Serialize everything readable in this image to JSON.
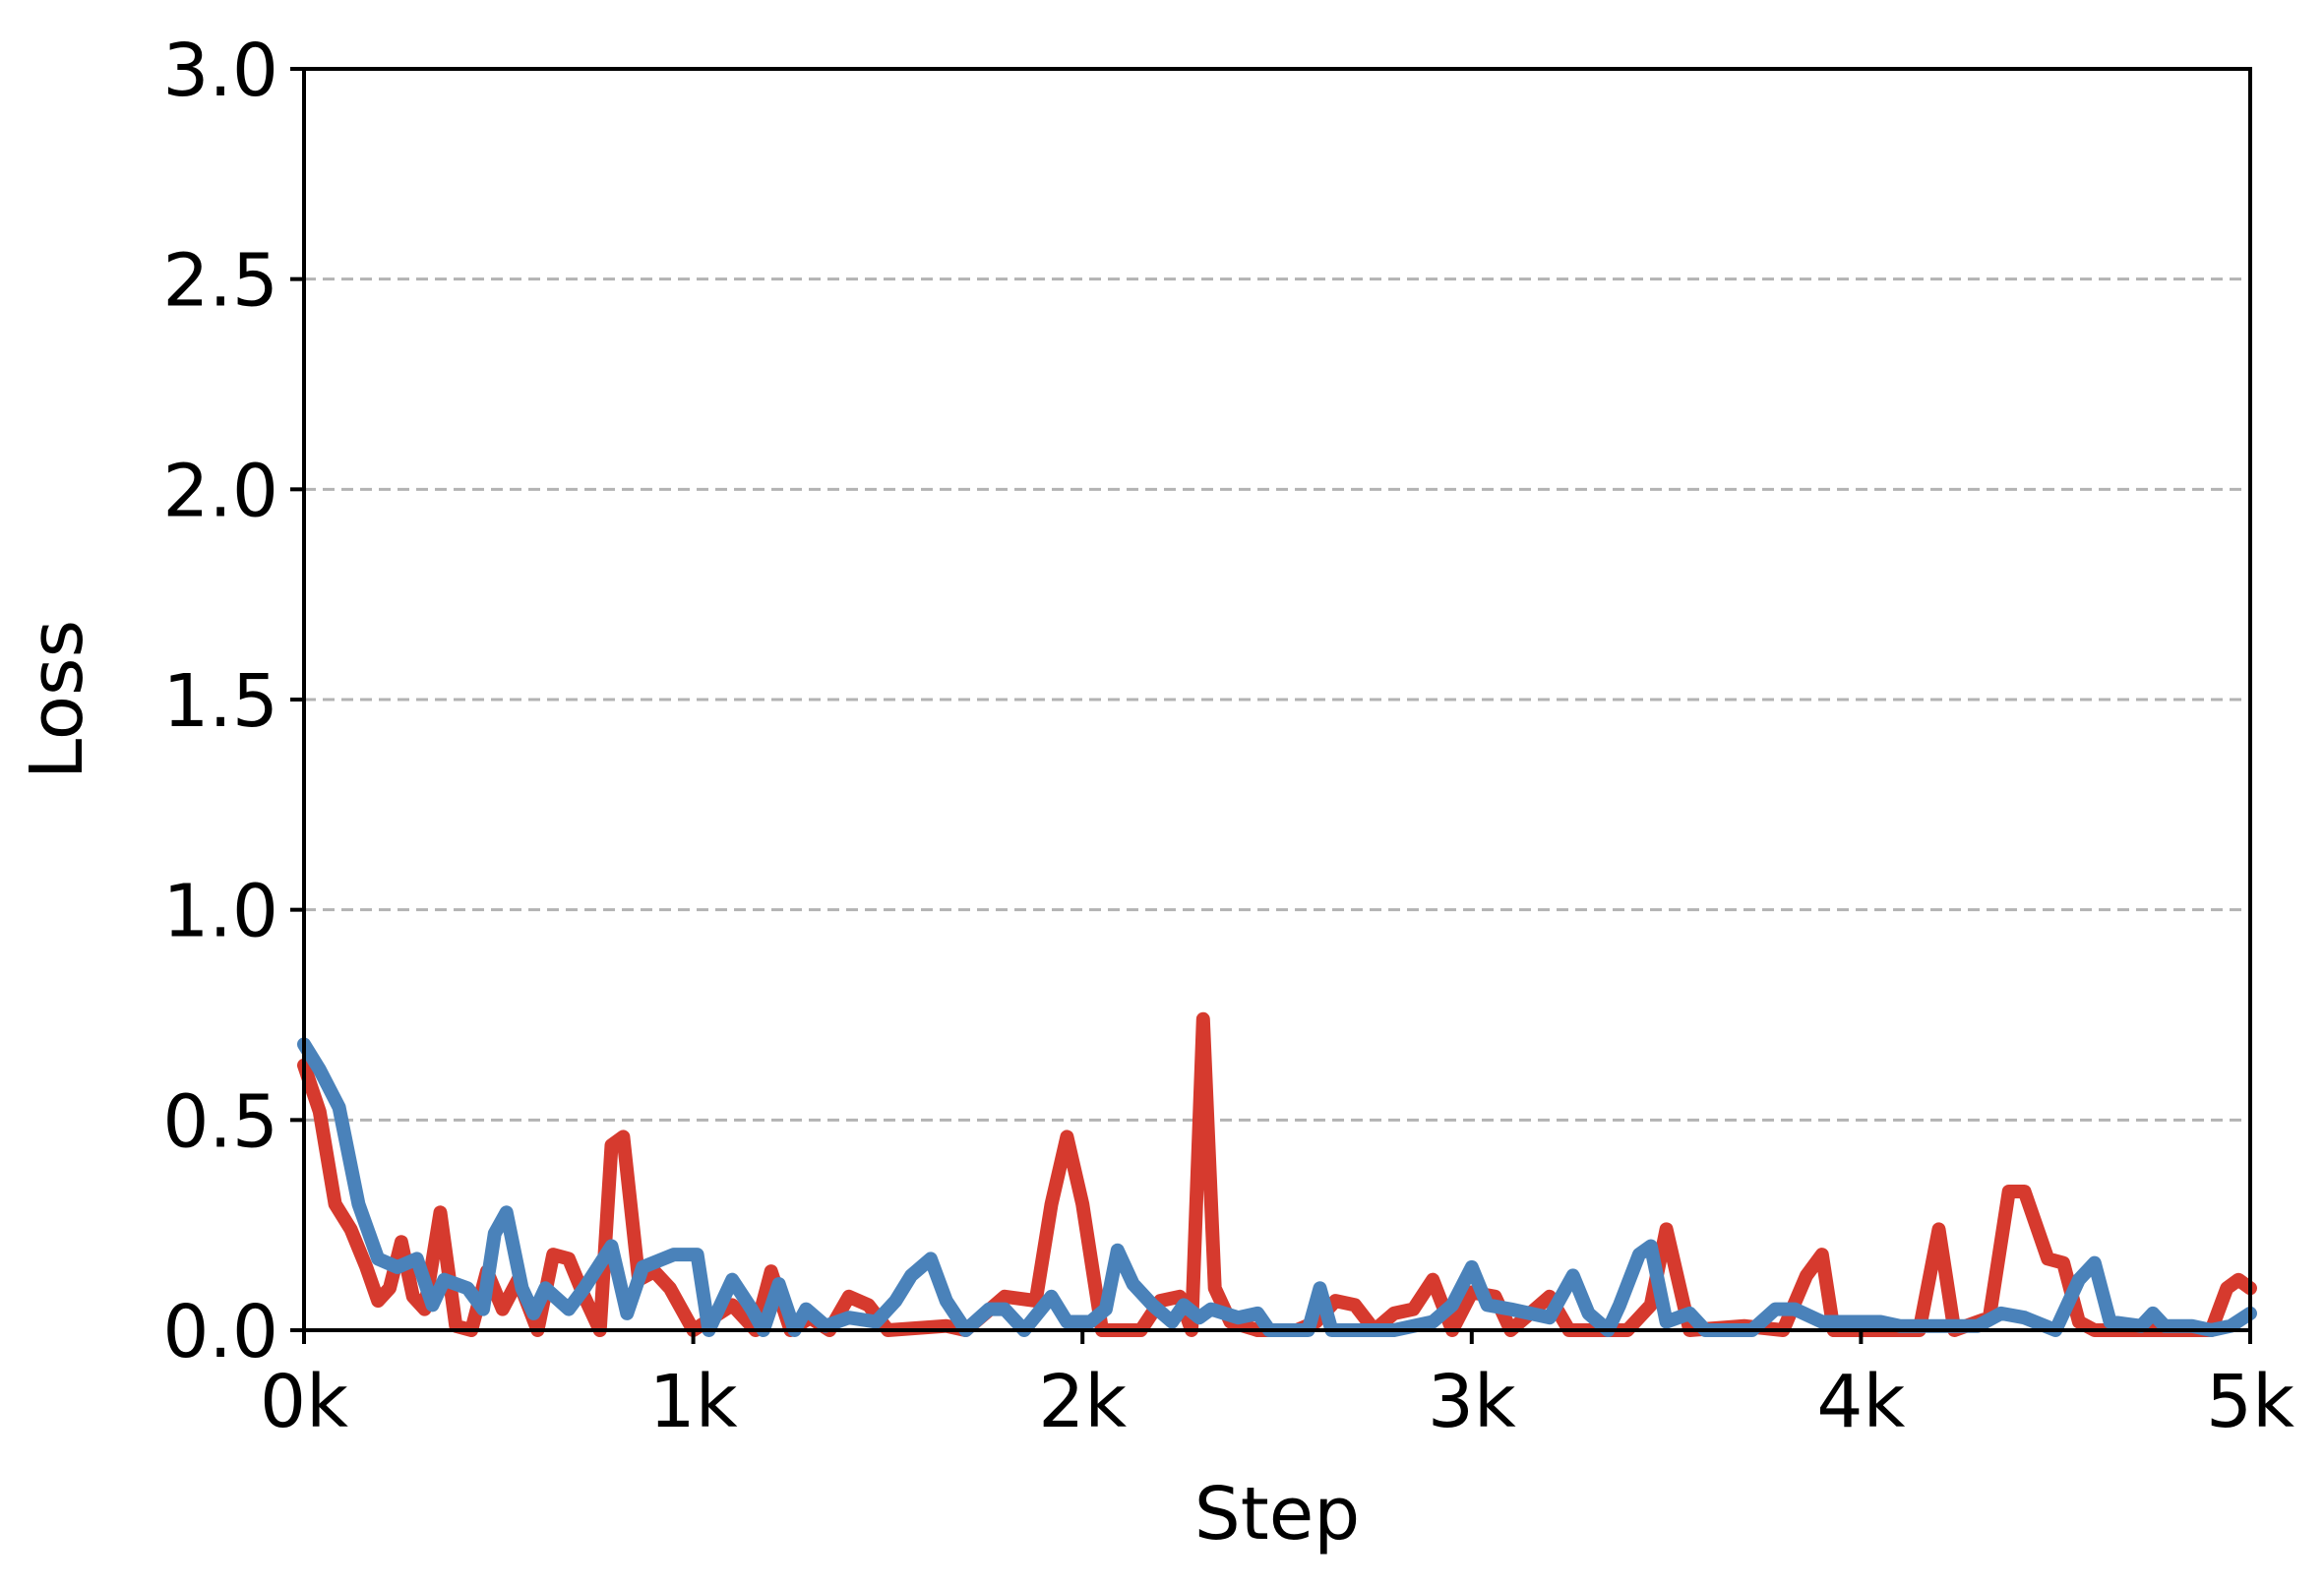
{
  "chart_data": {
    "type": "line",
    "title": "",
    "xlabel": "Step",
    "ylabel": "Loss",
    "xlim": [
      0,
      5000
    ],
    "ylim": [
      0,
      3.0
    ],
    "x_ticks": [
      0,
      1000,
      2000,
      3000,
      4000,
      5000
    ],
    "x_tick_labels": [
      "0k",
      "1k",
      "2k",
      "3k",
      "4k",
      "5k"
    ],
    "y_ticks": [
      0,
      0.5,
      1.0,
      1.5,
      2.0,
      2.5,
      3.0
    ],
    "y_tick_labels": [
      "0.0",
      "0.5",
      "1.0",
      "1.5",
      "2.0",
      "2.5",
      "3.0"
    ],
    "grid": "horizontal-dashed",
    "series": [
      {
        "color": "#d63a2e",
        "points": [
          [
            0,
            0.63
          ],
          [
            40,
            0.52
          ],
          [
            80,
            0.3
          ],
          [
            120,
            0.24
          ],
          [
            160,
            0.15
          ],
          [
            190,
            0.07
          ],
          [
            220,
            0.1
          ],
          [
            250,
            0.21
          ],
          [
            280,
            0.08
          ],
          [
            310,
            0.05
          ],
          [
            350,
            0.28
          ],
          [
            390,
            0.01
          ],
          [
            430,
            0.0
          ],
          [
            470,
            0.14
          ],
          [
            510,
            0.05
          ],
          [
            550,
            0.12
          ],
          [
            600,
            0.0
          ],
          [
            640,
            0.18
          ],
          [
            680,
            0.17
          ],
          [
            720,
            0.08
          ],
          [
            760,
            0.0
          ],
          [
            790,
            0.44
          ],
          [
            820,
            0.46
          ],
          [
            860,
            0.12
          ],
          [
            900,
            0.14
          ],
          [
            940,
            0.1
          ],
          [
            1000,
            0.0
          ],
          [
            1100,
            0.06
          ],
          [
            1160,
            0.0
          ],
          [
            1200,
            0.14
          ],
          [
            1250,
            0.0
          ],
          [
            1300,
            0.03
          ],
          [
            1350,
            0.0
          ],
          [
            1400,
            0.08
          ],
          [
            1450,
            0.06
          ],
          [
            1500,
            0.0
          ],
          [
            1650,
            0.01
          ],
          [
            1700,
            0.0
          ],
          [
            1800,
            0.08
          ],
          [
            1880,
            0.07
          ],
          [
            1920,
            0.3
          ],
          [
            1960,
            0.46
          ],
          [
            2000,
            0.3
          ],
          [
            2050,
            0.0
          ],
          [
            2150,
            0.0
          ],
          [
            2200,
            0.07
          ],
          [
            2250,
            0.08
          ],
          [
            2280,
            0.0
          ],
          [
            2310,
            0.74
          ],
          [
            2340,
            0.1
          ],
          [
            2380,
            0.02
          ],
          [
            2450,
            0.0
          ],
          [
            2550,
            0.0
          ],
          [
            2600,
            0.02
          ],
          [
            2650,
            0.07
          ],
          [
            2700,
            0.06
          ],
          [
            2750,
            0.0
          ],
          [
            2800,
            0.04
          ],
          [
            2850,
            0.05
          ],
          [
            2900,
            0.12
          ],
          [
            2950,
            0.0
          ],
          [
            3000,
            0.09
          ],
          [
            3060,
            0.08
          ],
          [
            3100,
            0.0
          ],
          [
            3200,
            0.08
          ],
          [
            3250,
            0.0
          ],
          [
            3400,
            0.0
          ],
          [
            3460,
            0.06
          ],
          [
            3500,
            0.24
          ],
          [
            3560,
            0.0
          ],
          [
            3700,
            0.01
          ],
          [
            3800,
            0.0
          ],
          [
            3860,
            0.13
          ],
          [
            3900,
            0.18
          ],
          [
            3930,
            0.0
          ],
          [
            4150,
            0.0
          ],
          [
            4200,
            0.24
          ],
          [
            4240,
            0.0
          ],
          [
            4330,
            0.03
          ],
          [
            4380,
            0.33
          ],
          [
            4420,
            0.33
          ],
          [
            4480,
            0.17
          ],
          [
            4520,
            0.16
          ],
          [
            4560,
            0.02
          ],
          [
            4600,
            0.0
          ],
          [
            4900,
            0.0
          ],
          [
            4940,
            0.1
          ],
          [
            4970,
            0.12
          ],
          [
            5000,
            0.1
          ]
        ]
      },
      {
        "color": "#4a82ba",
        "points": [
          [
            0,
            0.68
          ],
          [
            40,
            0.62
          ],
          [
            90,
            0.53
          ],
          [
            140,
            0.3
          ],
          [
            190,
            0.17
          ],
          [
            240,
            0.15
          ],
          [
            290,
            0.17
          ],
          [
            330,
            0.06
          ],
          [
            360,
            0.12
          ],
          [
            420,
            0.1
          ],
          [
            460,
            0.05
          ],
          [
            490,
            0.23
          ],
          [
            520,
            0.28
          ],
          [
            560,
            0.1
          ],
          [
            590,
            0.04
          ],
          [
            620,
            0.1
          ],
          [
            680,
            0.05
          ],
          [
            720,
            0.1
          ],
          [
            790,
            0.2
          ],
          [
            830,
            0.04
          ],
          [
            870,
            0.15
          ],
          [
            950,
            0.18
          ],
          [
            1010,
            0.18
          ],
          [
            1040,
            0.0
          ],
          [
            1100,
            0.12
          ],
          [
            1150,
            0.05
          ],
          [
            1180,
            0.0
          ],
          [
            1220,
            0.11
          ],
          [
            1260,
            0.0
          ],
          [
            1290,
            0.05
          ],
          [
            1340,
            0.01
          ],
          [
            1400,
            0.03
          ],
          [
            1470,
            0.02
          ],
          [
            1520,
            0.07
          ],
          [
            1560,
            0.13
          ],
          [
            1610,
            0.17
          ],
          [
            1650,
            0.07
          ],
          [
            1700,
            0.0
          ],
          [
            1760,
            0.05
          ],
          [
            1800,
            0.05
          ],
          [
            1850,
            0.0
          ],
          [
            1920,
            0.08
          ],
          [
            1960,
            0.02
          ],
          [
            2020,
            0.02
          ],
          [
            2060,
            0.05
          ],
          [
            2090,
            0.19
          ],
          [
            2130,
            0.11
          ],
          [
            2180,
            0.06
          ],
          [
            2230,
            0.02
          ],
          [
            2260,
            0.06
          ],
          [
            2300,
            0.03
          ],
          [
            2330,
            0.05
          ],
          [
            2400,
            0.03
          ],
          [
            2450,
            0.04
          ],
          [
            2480,
            0.0
          ],
          [
            2580,
            0.0
          ],
          [
            2610,
            0.1
          ],
          [
            2640,
            0.0
          ],
          [
            2800,
            0.0
          ],
          [
            2900,
            0.02
          ],
          [
            2950,
            0.06
          ],
          [
            3000,
            0.15
          ],
          [
            3040,
            0.06
          ],
          [
            3100,
            0.05
          ],
          [
            3200,
            0.03
          ],
          [
            3260,
            0.13
          ],
          [
            3300,
            0.04
          ],
          [
            3350,
            0.0
          ],
          [
            3380,
            0.06
          ],
          [
            3430,
            0.18
          ],
          [
            3460,
            0.2
          ],
          [
            3500,
            0.02
          ],
          [
            3560,
            0.04
          ],
          [
            3600,
            0.0
          ],
          [
            3720,
            0.0
          ],
          [
            3780,
            0.05
          ],
          [
            3830,
            0.05
          ],
          [
            3900,
            0.02
          ],
          [
            4050,
            0.02
          ],
          [
            4100,
            0.01
          ],
          [
            4200,
            0.01
          ],
          [
            4300,
            0.01
          ],
          [
            4360,
            0.04
          ],
          [
            4420,
            0.03
          ],
          [
            4500,
            0.0
          ],
          [
            4560,
            0.12
          ],
          [
            4600,
            0.16
          ],
          [
            4640,
            0.02
          ],
          [
            4720,
            0.01
          ],
          [
            4750,
            0.04
          ],
          [
            4780,
            0.01
          ],
          [
            4850,
            0.01
          ],
          [
            4900,
            0.0
          ],
          [
            4950,
            0.01
          ],
          [
            5000,
            0.04
          ]
        ]
      }
    ]
  }
}
